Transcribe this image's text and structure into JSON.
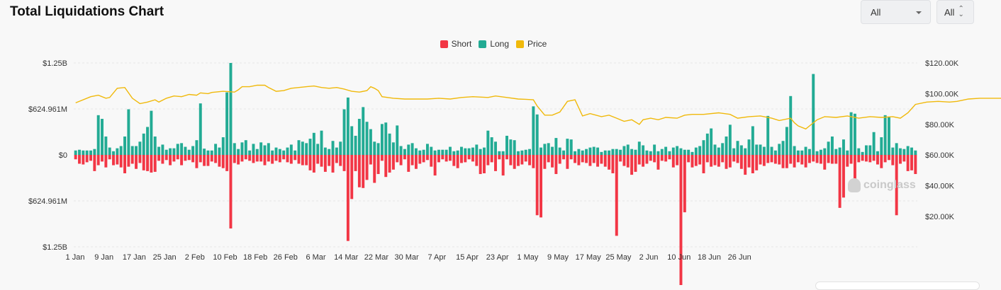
{
  "header": {
    "title": "Total Liquidations Chart",
    "range_select": "All",
    "coin_select": "All"
  },
  "icons": {
    "dropdown": "chevron-down-icon",
    "sort": "up-down-icon",
    "watermark": "coinglass-logo-icon"
  },
  "watermark": "coinglass",
  "colors": {
    "short": "#f23645",
    "long": "#22ab94",
    "price": "#f0b90b"
  },
  "chart_data": {
    "type": "bar",
    "title": "Total Liquidations Chart",
    "legend": [
      "Short",
      "Long",
      "Price"
    ],
    "legend_position": "top-center",
    "grid": true,
    "y_left": {
      "ticks": [
        "$1.25B",
        "$624.961M",
        "$0",
        "$624.961M",
        "$1.25B"
      ],
      "range": [
        -1250,
        1250
      ],
      "unit": "$M"
    },
    "y_right": {
      "ticks": [
        "$120.00K",
        "$100.00K",
        "$80.00K",
        "$60.00K",
        "$40.00K",
        "$20.00K"
      ],
      "range": [
        10000,
        120000
      ]
    },
    "x_ticks": [
      "1 Jan",
      "9 Jan",
      "17 Jan",
      "25 Jan",
      "2 Feb",
      "10 Feb",
      "18 Feb",
      "26 Feb",
      "6 Mar",
      "14 Mar",
      "22 Mar",
      "30 Mar",
      "7 Apr",
      "15 Apr",
      "23 Apr",
      "1 May",
      "9 May",
      "17 May",
      "25 May",
      "2 Jun",
      "10 Jun",
      "18 Jun",
      "26 Jun"
    ],
    "series": [
      {
        "name": "Long",
        "values": [
          60,
          70,
          60,
          60,
          60,
          80,
          540,
          490,
          250,
          100,
          50,
          90,
          120,
          250,
          620,
          120,
          120,
          180,
          290,
          380,
          600,
          250,
          110,
          140,
          70,
          90,
          90,
          150,
          160,
          110,
          70,
          120,
          200,
          700,
          85,
          60,
          60,
          150,
          100,
          240,
          850,
          1250,
          160,
          80,
          170,
          200,
          60,
          150,
          80,
          170,
          130,
          160,
          60,
          100,
          80,
          60,
          100,
          140,
          60,
          200,
          180,
          160,
          220,
          300,
          150,
          330,
          100,
          80,
          190,
          100,
          180,
          620,
          780,
          390,
          260,
          490,
          650,
          450,
          350,
          180,
          160,
          420,
          440,
          290,
          170,
          400,
          120,
          80,
          140,
          160,
          90,
          60,
          70,
          150,
          110,
          60,
          70,
          70,
          70,
          110,
          50,
          60,
          110,
          90,
          90,
          100,
          140,
          80,
          100,
          330,
          240,
          180,
          50,
          50,
          260,
          210,
          200,
          50,
          60,
          70,
          80,
          660,
          550,
          100,
          150,
          160,
          110,
          230,
          100,
          60,
          220,
          210,
          50,
          80,
          60,
          80,
          100,
          110,
          100,
          40,
          60,
          60,
          80,
          80,
          70,
          120,
          140,
          80,
          70,
          180,
          130,
          60,
          50,
          140,
          50,
          80,
          110,
          50,
          100,
          120,
          90,
          70,
          70,
          40,
          100,
          120,
          200,
          290,
          360,
          140,
          100,
          160,
          250,
          410,
          90,
          190,
          130,
          90,
          210,
          390,
          140,
          140,
          110,
          530,
          110,
          60,
          150,
          190,
          380,
          800,
          120,
          60,
          60,
          110,
          80,
          1100,
          50,
          70,
          90,
          180,
          250,
          80,
          100,
          210,
          60,
          580,
          560,
          90,
          40,
          130,
          130,
          310,
          50,
          240,
          540,
          520,
          100,
          160,
          90,
          80,
          120,
          100,
          60
        ]
      },
      {
        "name": "Short",
        "values": [
          60,
          120,
          130,
          100,
          80,
          220,
          140,
          90,
          170,
          60,
          140,
          130,
          170,
          250,
          160,
          120,
          190,
          110,
          210,
          220,
          240,
          230,
          80,
          120,
          70,
          140,
          90,
          60,
          140,
          80,
          70,
          100,
          180,
          100,
          150,
          150,
          90,
          110,
          160,
          180,
          220,
          1000,
          110,
          130,
          90,
          60,
          80,
          110,
          90,
          90,
          140,
          90,
          120,
          80,
          100,
          60,
          100,
          120,
          70,
          120,
          140,
          140,
          210,
          240,
          120,
          160,
          230,
          150,
          240,
          110,
          150,
          220,
          1170,
          600,
          220,
          440,
          450,
          340,
          130,
          380,
          260,
          80,
          300,
          240,
          200,
          100,
          140,
          60,
          230,
          140,
          190,
          120,
          100,
          70,
          160,
          280,
          100,
          60,
          90,
          80,
          150,
          180,
          110,
          100,
          60,
          90,
          150,
          260,
          250,
          140,
          100,
          220,
          60,
          280,
          60,
          140,
          190,
          150,
          130,
          90,
          140,
          180,
          820,
          850,
          190,
          100,
          170,
          260,
          120,
          60,
          190,
          60,
          110,
          140,
          100,
          110,
          150,
          110,
          160,
          120,
          160,
          200,
          250,
          1100,
          90,
          150,
          170,
          270,
          230,
          130,
          160,
          120,
          80,
          100,
          200,
          80,
          90,
          60,
          170,
          140,
          1980,
          780,
          100,
          170,
          150,
          130,
          250,
          100,
          160,
          140,
          160,
          100,
          190,
          170,
          90,
          110,
          190,
          270,
          170,
          250,
          210,
          130,
          150,
          110,
          100,
          120,
          130,
          180,
          180,
          120,
          170,
          100,
          130,
          170,
          110,
          90,
          110,
          120,
          200,
          110,
          120,
          120,
          720,
          580,
          160,
          120,
          400,
          100,
          80,
          90,
          100,
          80,
          130,
          180,
          100,
          70,
          140,
          820,
          120,
          90,
          220,
          210,
          260,
          110,
          300
        ]
      },
      {
        "name": "Price",
        "values": [
          [
            0,
            94000
          ],
          [
            4,
            98000
          ],
          [
            6,
            99000
          ],
          [
            8,
            97000
          ],
          [
            9,
            97500
          ],
          [
            11,
            103500
          ],
          [
            13,
            104000
          ],
          [
            15,
            97000
          ],
          [
            17,
            93500
          ],
          [
            19,
            94500
          ],
          [
            21,
            96000
          ],
          [
            22,
            94500
          ],
          [
            24,
            97000
          ],
          [
            26,
            98500
          ],
          [
            28,
            98000
          ],
          [
            30,
            99500
          ],
          [
            32,
            99000
          ],
          [
            33,
            100500
          ],
          [
            35,
            100000
          ],
          [
            36,
            100800
          ],
          [
            39,
            101500
          ],
          [
            42,
            101000
          ],
          [
            43,
            102500
          ],
          [
            44,
            104500
          ],
          [
            46,
            104500
          ],
          [
            48,
            105500
          ],
          [
            50,
            105500
          ],
          [
            51,
            104000
          ],
          [
            53,
            101500
          ],
          [
            55,
            102000
          ],
          [
            57,
            103500
          ],
          [
            59,
            104000
          ],
          [
            61,
            104500
          ],
          [
            63,
            105000
          ],
          [
            65,
            104000
          ],
          [
            67,
            103500
          ],
          [
            69,
            104000
          ],
          [
            71,
            103000
          ],
          [
            73,
            101500
          ],
          [
            75,
            101000
          ],
          [
            77,
            102000
          ],
          [
            78,
            104500
          ],
          [
            79,
            103500
          ],
          [
            80,
            102000
          ],
          [
            81,
            98000
          ],
          [
            84,
            97000
          ],
          [
            87,
            96500
          ],
          [
            90,
            96500
          ],
          [
            93,
            96500
          ],
          [
            96,
            97000
          ],
          [
            99,
            96500
          ],
          [
            102,
            97500
          ],
          [
            105,
            98000
          ],
          [
            109,
            97500
          ],
          [
            111,
            98500
          ],
          [
            114,
            97500
          ],
          [
            117,
            96500
          ],
          [
            119,
            96300
          ],
          [
            121,
            96000
          ],
          [
            122,
            92000
          ],
          [
            124,
            86000
          ],
          [
            126,
            86000
          ],
          [
            128,
            88000
          ],
          [
            130,
            95000
          ],
          [
            132,
            96000
          ],
          [
            134,
            85500
          ],
          [
            136,
            87000
          ],
          [
            139,
            85000
          ],
          [
            141,
            86000
          ],
          [
            143,
            84000
          ],
          [
            145,
            82000
          ],
          [
            147,
            83000
          ],
          [
            149,
            80000
          ],
          [
            150,
            83000
          ],
          [
            152,
            84000
          ],
          [
            154,
            83000
          ],
          [
            156,
            84500
          ],
          [
            159,
            84000
          ],
          [
            161,
            86000
          ],
          [
            163,
            86500
          ],
          [
            166,
            86500
          ],
          [
            170,
            87500
          ],
          [
            173,
            86500
          ],
          [
            175,
            84000
          ],
          [
            178,
            85000
          ],
          [
            181,
            85500
          ],
          [
            184,
            84000
          ],
          [
            186,
            82500
          ],
          [
            189,
            84000
          ],
          [
            190,
            81000
          ],
          [
            191,
            79000
          ],
          [
            193,
            77000
          ],
          [
            194,
            79000
          ],
          [
            196,
            83000
          ],
          [
            198,
            85000
          ],
          [
            201,
            84500
          ],
          [
            204,
            85500
          ],
          [
            207,
            84000
          ],
          [
            210,
            85000
          ],
          [
            213,
            84500
          ],
          [
            216,
            85000
          ],
          [
            218,
            84000
          ],
          [
            220,
            87500
          ],
          [
            222,
            93000
          ],
          [
            225,
            94500
          ],
          [
            228,
            95000
          ],
          [
            231,
            94500
          ],
          [
            233,
            95000
          ],
          [
            236,
            96500
          ],
          [
            239,
            97000
          ],
          [
            242,
            97000
          ],
          [
            245,
            97000
          ],
          [
            248,
            97000
          ],
          [
            251,
            101500
          ],
          [
            253,
            103000
          ],
          [
            255,
            104500
          ],
          [
            257,
            103000
          ],
          [
            259,
            104000
          ],
          [
            262,
            103000
          ],
          [
            264,
            103500
          ],
          [
            267,
            104500
          ],
          [
            269,
            104000
          ],
          [
            272,
            106000
          ],
          [
            274,
            108500
          ],
          [
            276,
            108500
          ],
          [
            278,
            107500
          ],
          [
            280,
            110500
          ],
          [
            282,
            106000
          ],
          [
            284,
            108500
          ],
          [
            286,
            109500
          ],
          [
            288,
            109500
          ],
          [
            291,
            108000
          ],
          [
            293,
            108000
          ],
          [
            295,
            105500
          ],
          [
            297,
            106000
          ],
          [
            299,
            104500
          ],
          [
            301,
            103500
          ],
          [
            303,
            104000
          ],
          [
            305,
            105000
          ],
          [
            307,
            102000
          ],
          [
            309,
            105500
          ],
          [
            311,
            109500
          ],
          [
            313,
            109000
          ],
          [
            314,
            106500
          ],
          [
            316,
            106000
          ],
          [
            318,
            105500
          ],
          [
            320,
            105000
          ],
          [
            322,
            105500
          ],
          [
            324,
            104500
          ],
          [
            326,
            105000
          ],
          [
            328,
            104000
          ],
          [
            330,
            104500
          ],
          [
            332,
            103500
          ],
          [
            334,
            102500
          ],
          [
            336,
            101500
          ],
          [
            338,
            104500
          ],
          [
            340,
            106500
          ],
          [
            342,
            107000
          ],
          [
            344,
            107000
          ],
          [
            346,
            107000
          ],
          [
            348,
            107500
          ]
        ]
      }
    ]
  }
}
